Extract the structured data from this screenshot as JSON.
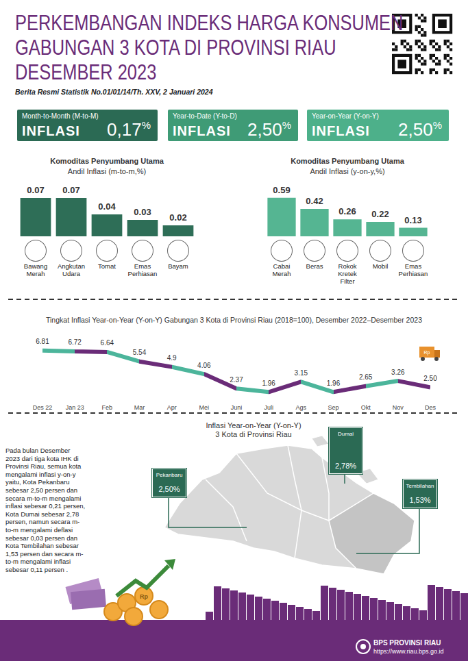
{
  "header": {
    "title": [
      "PERKEMBANGAN INDEKS HARGA KONSUMEN",
      "GABUNGAN 3 KOTA DI PROVINSI RIAU",
      "DESEMBER 2023"
    ],
    "subtitle": "Berita Resmi Statistik No.01/01/14/Th. XXV, 2 Januari 2024"
  },
  "kpis": [
    {
      "label": "Month-to-Month (M-to-M)",
      "kind": "INFLASI",
      "value": "0,17",
      "unit": "%",
      "color": "#2b6a54"
    },
    {
      "label": "Year-to-Date (Y-to-D)",
      "kind": "INFLASI",
      "value": "2,50",
      "unit": "%",
      "color": "#3f9b76"
    },
    {
      "label": "Year-on-Year (Y-on-Y)",
      "kind": "INFLASI",
      "value": "2,50",
      "unit": "%",
      "color": "#4db08a"
    }
  ],
  "chart_data": [
    {
      "type": "bar",
      "title": "Komoditas Penyumbang Utama",
      "subtitle": "Andil Inflasi (m-to-m,%)",
      "categories": [
        "Bawang Merah",
        "Angkutan Udara",
        "Tomat",
        "Emas Perhiasan",
        "Bayam"
      ],
      "values": [
        0.07,
        0.07,
        0.04,
        0.03,
        0.02
      ],
      "color": "#2e6e57",
      "ylim": [
        0,
        0.075
      ],
      "data_labels": true,
      "tick_labels": "x",
      "grid": false
    },
    {
      "type": "bar",
      "title": "Komoditas Penyumbang Utama",
      "subtitle": "Andil Inflasi (y-on-y,%)",
      "categories": [
        "Cabai Merah",
        "Beras",
        "Rokok Kretek Filter",
        "Mobil",
        "Emas Perhiasan"
      ],
      "values": [
        0.59,
        0.42,
        0.26,
        0.22,
        0.13
      ],
      "color": "#55b592",
      "ylim": [
        0,
        0.63
      ],
      "data_labels": true,
      "tick_labels": "x",
      "grid": false
    },
    {
      "type": "line",
      "title": "Tingkat Inflasi Year-on-Year (Y-on-Y) Gabungan 3 Kota di Provinsi Riau (2018=100), Desember 2022–Desember 2023",
      "categories": [
        "Des 22",
        "Jan 23",
        "Feb",
        "Mar",
        "Apr",
        "Mei",
        "Juni",
        "Juli",
        "Ags",
        "Sep",
        "Okt",
        "Nov",
        "Des"
      ],
      "values": [
        6.81,
        6.72,
        6.64,
        5.54,
        4.9,
        4.06,
        2.37,
        1.96,
        3.15,
        1.96,
        2.65,
        3.26,
        2.5
      ],
      "value_labels": [
        "6.81",
        "6.72",
        "6.64",
        "5.54",
        "4.9",
        "4.06",
        "2.37",
        "1.96",
        "3.15",
        "1.96",
        "2.65",
        "3.26",
        "2.50"
      ],
      "color": "#6a2c78",
      "ylim": [
        1.5,
        7.2
      ],
      "data_labels": true,
      "tick_labels": "x",
      "grid": false
    }
  ],
  "map": {
    "title": [
      "Inflasi Year-on-Year (Y-on-Y)",
      "3 Kota di Provinsi Riau"
    ],
    "note": "Pada bulan Desember 2023 dari tiga kota IHK di Provinsi Riau, semua kota mengalami inflasi y-on-y yaitu, Kota Pekanbaru sebesar 2,50 persen dan secara m-to-m mengalami inflasi sebesar 0,21 persen, Kota Dumai sebesar 2,78 persen, namun secara m-to-m mengalami deflasi sebesar 0,03 persen dan Kota Tembilahan sebesar 1,53 persen dan secara m-to-m mengalami inflasi sebesar 0,11 persen .",
    "cities": [
      {
        "name": "Dumai",
        "value": "2,78%"
      },
      {
        "name": "Pekanbaru",
        "value": "2,50%"
      },
      {
        "name": "Tembilahan",
        "value": "1,53%"
      }
    ]
  },
  "decor_label": "Rp",
  "footer": {
    "org": "BPS PROVINSI RIAU",
    "url": "https://www.riau.bps.go.id"
  }
}
